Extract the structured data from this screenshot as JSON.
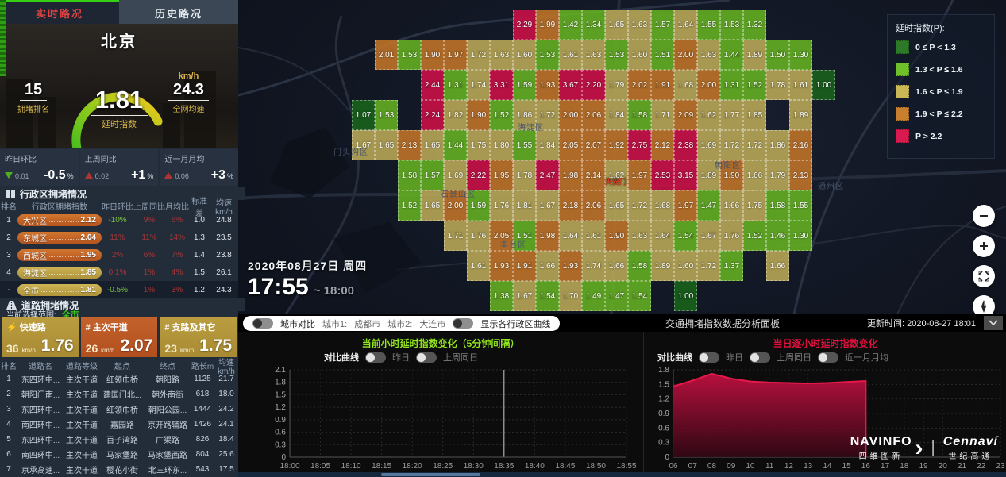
{
  "tabs": {
    "realtime": "实时路况",
    "history": "历史路况"
  },
  "city_panel": {
    "city": "北京",
    "rank_value": "15",
    "rank_label": "拥堵排名",
    "index_value": "1.81",
    "index_label": "延时指数",
    "speed_unit": "km/h",
    "speed_value": "24.3",
    "speed_label": "全网均速"
  },
  "summary_stats": [
    {
      "label": "昨日环比",
      "dir": "down",
      "delta": "0.01",
      "pct": "-0.5",
      "unit": "%"
    },
    {
      "label": "上周同比",
      "dir": "up",
      "delta": "0.02",
      "pct": "+1",
      "unit": "%"
    },
    {
      "label": "近一月月均",
      "dir": "up",
      "delta": "0.06",
      "pct": "+3",
      "unit": "%"
    }
  ],
  "district_section": {
    "title": "行政区拥堵情况",
    "headers": [
      "排名",
      "行政区拥堵指数",
      "昨日环比",
      "上周同比",
      "月均比",
      "标准差",
      "均速km/h"
    ],
    "rows": [
      {
        "rank": "1",
        "name": "大兴区",
        "index": "2.12",
        "pcts": [
          {
            "v": "-10%",
            "neg": true
          },
          {
            "v": "9%",
            "neg": false
          },
          {
            "v": "6%",
            "neg": false
          }
        ],
        "std": "1.0",
        "speed": "24.8",
        "selected": false
      },
      {
        "rank": "2",
        "name": "东城区",
        "index": "2.04",
        "pcts": [
          {
            "v": "11%",
            "neg": false
          },
          {
            "v": "11%",
            "neg": false
          },
          {
            "v": "14%",
            "neg": false
          }
        ],
        "std": "1.3",
        "speed": "23.5",
        "selected": false
      },
      {
        "rank": "3",
        "name": "西城区",
        "index": "1.95",
        "pcts": [
          {
            "v": "2%",
            "neg": false
          },
          {
            "v": "6%",
            "neg": false
          },
          {
            "v": "7%",
            "neg": false
          }
        ],
        "std": "1.4",
        "speed": "23.8",
        "selected": false
      },
      {
        "rank": "4",
        "name": "海淀区",
        "index": "1.85",
        "pcts": [
          {
            "v": "0.1%",
            "neg": false
          },
          {
            "v": "1%",
            "neg": false
          },
          {
            "v": "4%",
            "neg": false
          }
        ],
        "std": "1.5",
        "speed": "26.1",
        "selected": false
      },
      {
        "rank": "-",
        "name": "全市",
        "index": "1.81",
        "pcts": [
          {
            "v": "-0.5%",
            "neg": true
          },
          {
            "v": "1%",
            "neg": false
          },
          {
            "v": "3%",
            "neg": false
          }
        ],
        "std": "1.2",
        "speed": "24.3",
        "selected": true
      }
    ]
  },
  "road_section": {
    "title": "道路拥堵情况",
    "scope_label": "当前选择范围:",
    "scope_value": "全市",
    "cards": [
      {
        "icon": "bolt",
        "name": "快速路",
        "speed": "36",
        "unit": "km/h",
        "index": "1.76"
      },
      {
        "icon": "hash",
        "name": "主次干道",
        "speed": "26",
        "unit": "km/h",
        "index": "2.07"
      },
      {
        "icon": "hash",
        "name": "支路及其它",
        "speed": "23",
        "unit": "km/h",
        "index": "1.75"
      }
    ],
    "headers": [
      "排名",
      "道路名",
      "道路等级",
      "起点",
      "终点",
      "路长m",
      "均速km/h"
    ],
    "rows": [
      [
        "1",
        "东四环中...",
        "主次干道",
        "红领巾桥",
        "朝阳路",
        "1125",
        "21.7"
      ],
      [
        "2",
        "朝阳门南...",
        "主次干道",
        "建国门北...",
        "朝外南街",
        "618",
        "18.0"
      ],
      [
        "3",
        "东四环中...",
        "主次干道",
        "红领巾桥",
        "朝阳公园...",
        "1444",
        "24.2"
      ],
      [
        "4",
        "南四环中...",
        "主次干道",
        "嘉园路",
        "京开路辅路",
        "1426",
        "24.1"
      ],
      [
        "5",
        "东四环中...",
        "主次干道",
        "百子湾路",
        "广渠路",
        "826",
        "18.4"
      ],
      [
        "6",
        "南四环中...",
        "主次干道",
        "马家堡路",
        "马家堡西路",
        "804",
        "25.6"
      ],
      [
        "7",
        "京承高速...",
        "主次干道",
        "樱花小街",
        "北三环东...",
        "543",
        "17.5"
      ]
    ]
  },
  "map": {
    "datetime": "2020年08月27日  周四",
    "time_big": "17:55",
    "time_range": "~ 18:00",
    "legend": {
      "title": "延时指数(P):",
      "items": [
        {
          "label": "0 ≤ P < 1.3",
          "color": "#2c7a28"
        },
        {
          "label": "1.3 < P ≤ 1.6",
          "color": "#6fc02a"
        },
        {
          "label": "1.6 < P ≤ 1.9",
          "color": "#c9b855"
        },
        {
          "label": "1.9 < P ≤ 2.2",
          "color": "#c8802e"
        },
        {
          "label": "P > 2.2",
          "color": "#d81a4e"
        }
      ]
    },
    "area_labels": [
      "门头沟区",
      "石景山区",
      "海淀区",
      "朝阳区",
      "通州区",
      "丰台区"
    ],
    "landmark": "天安门",
    "heatmap_rows": [
      {
        "start": 7,
        "cells": [
          "2.29",
          "1.99",
          "1.42",
          "1.34",
          "1.65",
          "1.63",
          "1.57",
          "1.64",
          "1.55",
          "1.53",
          "1.32"
        ]
      },
      {
        "start": 1,
        "cells": [
          "2.01",
          "1.53",
          "1.90",
          "1.97",
          "1.72",
          "1.63",
          "1.60",
          "1.53",
          "1.61",
          "1.63",
          "1.53",
          "1.60",
          "1.51",
          "2.00",
          "1.63",
          "1.44",
          "1.89",
          "1.50",
          "1.30"
        ]
      },
      {
        "start": 3,
        "cells": [
          "2.44",
          "1.31",
          "1.74",
          "3.31",
          "1.59",
          "1.93",
          "3.67",
          "2.20",
          "1.79",
          "2.02",
          "1.91",
          "1.68",
          "2.00",
          "1.31",
          "1.52",
          "1.78",
          "1.61",
          "1.00"
        ]
      },
      {
        "start": 0,
        "cells": [
          "1.07",
          "1.53",
          "",
          "2.24",
          "1.82",
          "1.90",
          "1.52",
          "1.86",
          "1.72",
          "2.00",
          "2.06",
          "1.84",
          "1.58",
          "1.71",
          "2.09",
          "1.62",
          "1.77",
          "1.85",
          "",
          "1.89"
        ]
      },
      {
        "start": 0,
        "cells": [
          "1.67",
          "1.65",
          "2.13",
          "1.65",
          "1.44",
          "1.75",
          "1.80",
          "1.55",
          "1.84",
          "2.05",
          "2.07",
          "1.92",
          "2.75",
          "2.12",
          "2.38",
          "1.69",
          "1.72",
          "1.72",
          "1.86",
          "2.16"
        ]
      },
      {
        "start": 2,
        "cells": [
          "1.58",
          "1.57",
          "1.69",
          "2.22",
          "1.95",
          "1.78",
          "2.47",
          "1.98",
          "2.14",
          "1.62",
          "1.97",
          "2.53",
          "3.15",
          "1.89",
          "1.90",
          "1.66",
          "1.79",
          "2.13"
        ]
      },
      {
        "start": 2,
        "cells": [
          "1.52",
          "1.65",
          "2.00",
          "1.59",
          "1.76",
          "1.81",
          "1.67",
          "2.18",
          "2.06",
          "1.65",
          "1.72",
          "1.68",
          "1.97",
          "1.47",
          "1.66",
          "1.75",
          "1.58",
          "1.55"
        ]
      },
      {
        "start": 4,
        "cells": [
          "1.71",
          "1.76",
          "2.05",
          "1.51",
          "1.98",
          "1.64",
          "1.61",
          "1.90",
          "1.63",
          "1.64",
          "1.54",
          "1.67",
          "1.76",
          "1.52",
          "1.46",
          "1.30"
        ]
      },
      {
        "start": 5,
        "cells": [
          "1.61",
          "1.93",
          "1.91",
          "1.66",
          "1.93",
          "1.74",
          "1.66",
          "1.58",
          "1.89",
          "1.60",
          "1.72",
          "1.37",
          "",
          "1.66"
        ]
      },
      {
        "start": 6,
        "cells": [
          "1.38",
          "1.67",
          "1.54",
          "1.70",
          "1.49",
          "1.47",
          "1.54",
          "",
          "1.00"
        ]
      }
    ]
  },
  "toolbar": {
    "panel_title": "交通拥堵指数数据分析面板",
    "updated_label": "更新时间:",
    "updated_value": "2020-08-27 18:01",
    "compare_toggle": "城市对比",
    "city1_label": "城市1:",
    "city1_value": "成都市",
    "city2_label": "城市2:",
    "city2_value": "大连市",
    "district_curves_toggle": "显示各行政区曲线"
  },
  "chart_data": [
    {
      "id": "current-hour",
      "type": "line",
      "title": "当前小时延时指数变化（5分钟间隔）",
      "controls_label": "对比曲线",
      "toggles": [
        "昨日",
        "上周同日"
      ],
      "x": [
        "18:00",
        "18:05",
        "18:10",
        "18:15",
        "18:20",
        "18:25",
        "18:30",
        "18:35",
        "18:40",
        "18:45",
        "18:50",
        "18:55"
      ],
      "series": [],
      "ylim": [
        0,
        2.1
      ],
      "ytick_step": 0.3,
      "grid": true,
      "legend_position": "none",
      "crosshair_x": "18:35"
    },
    {
      "id": "hourly-today",
      "type": "area",
      "title": "当日逐小时延时指数变化",
      "controls_label": "对比曲线",
      "toggles": [
        "昨日",
        "上周同日",
        "近一月月均"
      ],
      "x": [
        "06",
        "07",
        "08",
        "09",
        "10",
        "11",
        "12",
        "13",
        "14",
        "15",
        "16",
        "17",
        "18",
        "19",
        "20",
        "21",
        "22",
        "23"
      ],
      "series": [
        {
          "name": "当日延时指数",
          "color": "#e8174a",
          "values": [
            1.46,
            1.58,
            1.72,
            1.62,
            1.56,
            1.54,
            1.53,
            1.52,
            1.53,
            1.55,
            1.57
          ]
        }
      ],
      "ylim": [
        0,
        1.8
      ],
      "ytick_step": 0.3,
      "grid": true,
      "legend_position": "none"
    }
  ],
  "logos": {
    "navinfo": "NAVINFO",
    "navinfo_cn": "四维图新",
    "cennavi": "Cennaví",
    "cennavi_cn": "世纪高通"
  }
}
